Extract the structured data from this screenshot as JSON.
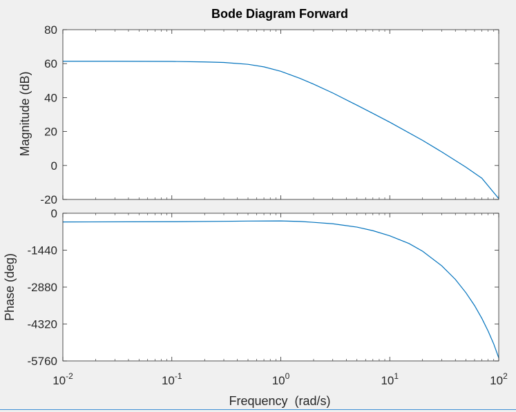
{
  "chart_data": {
    "type": "line",
    "title": "Bode Diagram Forward",
    "xlabel": "Frequency  (rad/s)",
    "x_scale": "log",
    "xlim": [
      0.01,
      100
    ],
    "x_ticks": [
      {
        "value": 0.01,
        "base": "10",
        "exp": "-2"
      },
      {
        "value": 0.1,
        "base": "10",
        "exp": "-1"
      },
      {
        "value": 1,
        "base": "10",
        "exp": "0"
      },
      {
        "value": 10,
        "base": "10",
        "exp": "1"
      },
      {
        "value": 100,
        "base": "10",
        "exp": "2"
      }
    ],
    "line_color": "#0072bd",
    "magnitude": {
      "ylabel": "Magnitude (dB)",
      "ylim": [
        -20,
        80
      ],
      "yticks": [
        80,
        60,
        40,
        20,
        0,
        -20
      ],
      "series": [
        {
          "x": [
            0.01,
            0.03,
            0.1,
            0.2,
            0.3,
            0.5,
            0.7,
            1,
            1.5,
            2,
            3,
            5,
            7,
            10,
            20,
            30,
            50,
            70,
            100
          ],
          "y": [
            61.4,
            61.4,
            61.3,
            61.0,
            60.7,
            59.6,
            58.1,
            55.5,
            51.3,
            47.9,
            42.7,
            35.5,
            30.7,
            25.5,
            14.8,
            8.0,
            -1.0,
            -7.5,
            -19.5
          ]
        }
      ]
    },
    "phase": {
      "ylabel": "Phase (deg)",
      "ylim": [
        -5760,
        0
      ],
      "yticks": [
        0,
        -1440,
        -2880,
        -4320,
        -5760
      ],
      "series": [
        {
          "x": [
            0.01,
            0.1,
            0.3,
            0.5,
            1,
            1.5,
            2,
            3,
            5,
            7,
            10,
            15,
            20,
            30,
            40,
            50,
            60,
            70,
            80,
            90,
            100
          ],
          "y": [
            -340,
            -330,
            -315,
            -305,
            -300,
            -320,
            -355,
            -410,
            -540,
            -680,
            -880,
            -1180,
            -1480,
            -2050,
            -2580,
            -3100,
            -3600,
            -4100,
            -4600,
            -5100,
            -5640
          ]
        }
      ]
    }
  }
}
